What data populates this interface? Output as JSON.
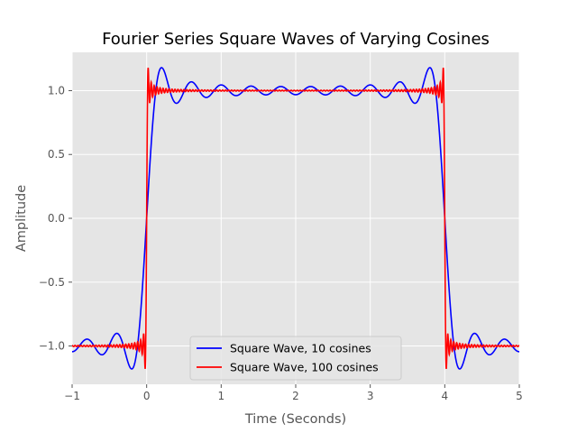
{
  "chart_data": {
    "type": "line",
    "title": "Fourier Series Square Waves of Varying Cosines",
    "xlabel": "Time (Seconds)",
    "ylabel": "Amplitude",
    "xlim": [
      -1,
      5
    ],
    "ylim": [
      -1.3,
      1.3
    ],
    "xticks": [
      -1,
      0,
      1,
      2,
      3,
      4,
      5
    ],
    "xtick_labels": [
      "−1",
      "0",
      "1",
      "2",
      "3",
      "4",
      "5"
    ],
    "yticks": [
      -1.0,
      -0.5,
      0.0,
      0.5,
      1.0
    ],
    "ytick_labels": [
      "−1.0",
      "−0.5",
      "0.0",
      "0.5",
      "1.0"
    ],
    "grid": true,
    "legend_position": "bottom-center",
    "period": 8,
    "series": [
      {
        "name": "Square Wave, 10 cosines",
        "color": "#0000ff",
        "terms": 10
      },
      {
        "name": "Square Wave, 100 cosines",
        "color": "#ff0000",
        "terms": 100
      }
    ]
  }
}
